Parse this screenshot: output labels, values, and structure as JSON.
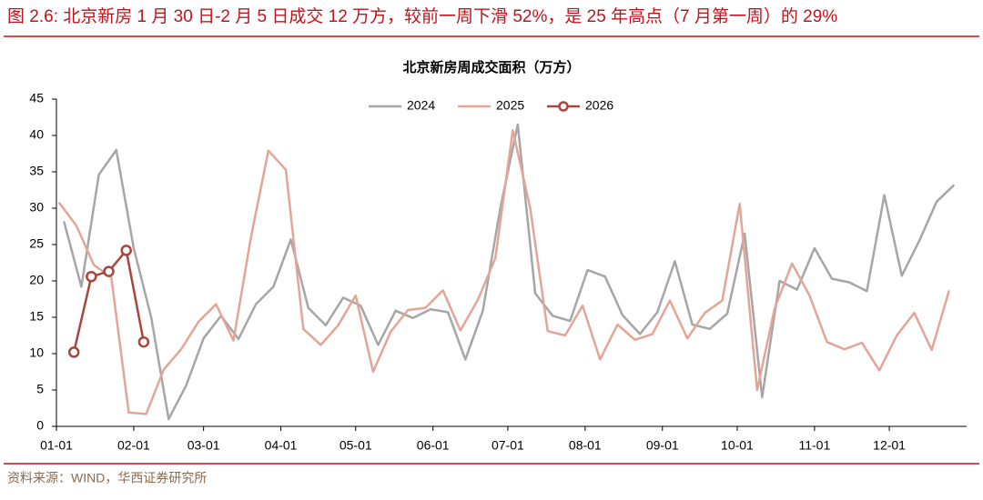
{
  "figure_caption": "图 2.6: 北京新房 1 月 30 日-2 月 5 日成交 12 万方，较前一周下滑 52%，是 25 年高点（7 月第一周）的 29%",
  "source": "资料来源：WIND，华西证券研究所",
  "chart_data": {
    "type": "line",
    "title": "北京新房周成交面积（万方）",
    "xlim": [
      0,
      365
    ],
    "xticks": [
      {
        "value": 0,
        "label": "01-01"
      },
      {
        "value": 31,
        "label": "02-01"
      },
      {
        "value": 59,
        "label": "03-01"
      },
      {
        "value": 90,
        "label": "04-01"
      },
      {
        "value": 120,
        "label": "05-01"
      },
      {
        "value": 151,
        "label": "06-01"
      },
      {
        "value": 181,
        "label": "07-01"
      },
      {
        "value": 212,
        "label": "08-01"
      },
      {
        "value": 243,
        "label": "09-01"
      },
      {
        "value": 273,
        "label": "10-01"
      },
      {
        "value": 304,
        "label": "11-01"
      },
      {
        "value": 334,
        "label": "12-01"
      }
    ],
    "ylim": [
      0,
      45
    ],
    "yticks": [
      0,
      5,
      10,
      15,
      20,
      25,
      30,
      35,
      40,
      45
    ],
    "grid": false,
    "legend": "top",
    "series": [
      {
        "name": "2024",
        "color": "#a6a6a6",
        "markers": false,
        "x": [
          3,
          10,
          17,
          24,
          31,
          38,
          45,
          52,
          59,
          66,
          73,
          80,
          87,
          94,
          101,
          108,
          115,
          122,
          129,
          136,
          143,
          150,
          157,
          164,
          171,
          178,
          185,
          192,
          199,
          206,
          213,
          220,
          227,
          234,
          241,
          248,
          255,
          262,
          269,
          276,
          283,
          290,
          297,
          304,
          311,
          318,
          325,
          332,
          339,
          346,
          353,
          360
        ],
        "values": [
          28.2,
          19.2,
          34.6,
          38,
          24.5,
          15,
          1,
          5.6,
          12.1,
          15.2,
          12,
          16.8,
          19.2,
          25.7,
          16.3,
          13.9,
          17.7,
          16.6,
          11.2,
          15.9,
          14.9,
          16.1,
          15.7,
          9.2,
          15.9,
          30,
          41.5,
          18.3,
          15.2,
          14.5,
          21.5,
          20.6,
          15.3,
          12.7,
          15.7,
          22.7,
          14,
          13.4,
          15.5,
          26.5,
          4,
          20,
          18.8,
          24.5,
          20.3,
          19.8,
          18.6,
          31.8,
          20.7,
          25.5,
          30.9,
          33.2
        ]
      },
      {
        "name": "2025",
        "color": "#e3a597",
        "markers": false,
        "x": [
          1,
          8,
          15,
          22,
          29,
          36,
          43,
          50,
          57,
          64,
          71,
          78,
          85,
          92,
          99,
          106,
          113,
          120,
          127,
          134,
          141,
          148,
          155,
          162,
          169,
          176,
          183,
          190,
          197,
          204,
          211,
          218,
          225,
          232,
          239,
          246,
          253,
          260,
          267,
          274,
          281,
          288,
          295,
          302,
          309,
          316,
          323,
          330,
          337,
          344,
          351,
          358
        ],
        "values": [
          30.8,
          27.6,
          22.2,
          20.5,
          1.9,
          1.7,
          7.8,
          10.6,
          14.4,
          16.8,
          11.8,
          26,
          37.9,
          35.3,
          13.4,
          11.2,
          13.9,
          18,
          7.5,
          13,
          16,
          16.3,
          18.7,
          13.2,
          17.4,
          23.1,
          40.7,
          30,
          13.1,
          12.5,
          16.6,
          9.2,
          14,
          11.9,
          12.7,
          17.3,
          12.1,
          15.6,
          17.3,
          30.6,
          5,
          16.2,
          22.4,
          18,
          11.6,
          10.6,
          11.5,
          7.7,
          12.5,
          15.6,
          10.5,
          18.7
        ]
      },
      {
        "name": "2026",
        "color": "#a8453c",
        "markers": true,
        "x": [
          7,
          14,
          21,
          28,
          35
        ],
        "values": [
          10.2,
          20.6,
          21.3,
          24.2,
          11.6
        ]
      }
    ]
  }
}
